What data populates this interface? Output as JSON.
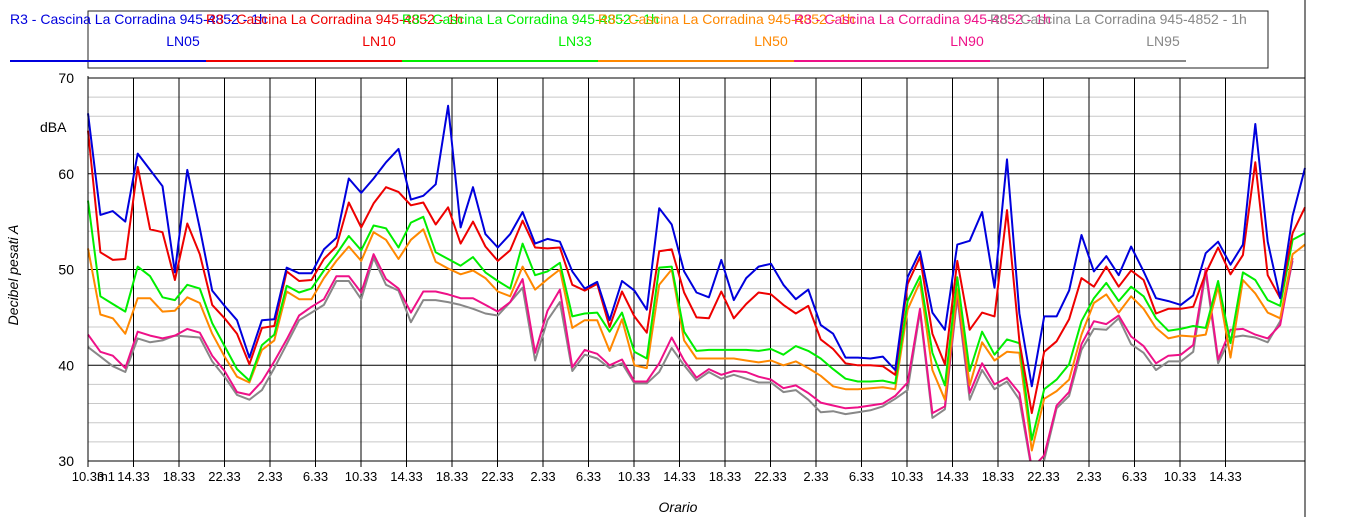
{
  "chart_data": {
    "type": "line",
    "xlabel": "Orario",
    "ylabel": "Decibel pesati A",
    "unit": "dBA",
    "ylim": [
      30,
      70
    ],
    "yticks": [
      30,
      40,
      50,
      60,
      70
    ],
    "xticks": [
      "10.33",
      "14.33",
      "18.33",
      "22.33",
      "2.33",
      "6.33",
      "10.33",
      "14.33",
      "18.33",
      "22.33",
      "2.33",
      "6.33",
      "10.33",
      "14.33",
      "18.33",
      "22.33",
      "2.33",
      "6.33",
      "10.33",
      "14.33",
      "18.33",
      "22.33",
      "2.33",
      "6.33",
      "10.33",
      "14.33"
    ],
    "first_tick_extra": "m1",
    "grid": true,
    "legend_position": "top",
    "series": [
      {
        "name": "R3 - Cascina La Corradina 945-4852 - 1h",
        "metric": "LN05",
        "color": "#0000dd",
        "values": [
          66.3,
          55.7,
          56.1,
          55.0,
          62.1,
          60.4,
          58.7,
          49.7,
          60.4,
          54.3,
          47.8,
          46.2,
          44.7,
          40.8,
          44.7,
          44.8,
          50.2,
          49.6,
          49.6,
          52.1,
          53.3,
          59.5,
          58.0,
          59.5,
          61.2,
          62.6,
          57.3,
          57.7,
          58.9,
          67.1,
          54.4,
          58.6,
          53.7,
          52.3,
          53.7,
          56.0,
          52.7,
          53.2,
          52.9,
          49.8,
          48.0,
          48.7,
          44.7,
          48.8,
          47.8,
          45.8,
          56.4,
          54.7,
          49.8,
          47.6,
          47.1,
          51.0,
          46.8,
          49.1,
          50.3,
          50.6,
          48.4,
          46.9,
          47.9,
          44.2,
          43.3,
          40.8,
          40.8,
          40.7,
          40.9,
          39.5,
          49.2,
          51.9,
          45.5,
          43.7,
          52.6,
          53.0,
          56.0,
          48.1,
          61.5,
          45.4,
          37.8,
          45.1,
          45.1,
          47.8,
          53.6,
          49.8,
          51.4,
          49.4,
          52.4,
          49.8,
          47.0,
          46.7,
          46.3,
          47.3,
          51.7,
          52.9,
          50.5,
          52.6,
          65.2,
          52.9,
          47.0,
          55.6,
          60.6
        ]
      },
      {
        "name": "R3 - Cascina La Corradina 945-4852 - 1h",
        "metric": "LN10",
        "color": "#ee0000",
        "values": [
          64.5,
          51.8,
          51.0,
          51.1,
          60.7,
          54.2,
          53.9,
          48.9,
          54.8,
          51.6,
          46.3,
          44.9,
          43.3,
          40.1,
          43.9,
          44.1,
          49.8,
          48.8,
          48.9,
          51.1,
          52.4,
          57.0,
          54.4,
          56.9,
          58.6,
          58.1,
          56.7,
          57.0,
          54.7,
          56.5,
          52.7,
          55.0,
          52.4,
          50.9,
          52.0,
          55.1,
          52.3,
          52.2,
          52.3,
          48.4,
          47.8,
          48.5,
          44.0,
          47.7,
          45.1,
          43.4,
          51.9,
          52.1,
          47.6,
          45.0,
          44.9,
          47.7,
          44.9,
          46.4,
          47.6,
          47.4,
          46.3,
          45.4,
          46.2,
          42.7,
          41.7,
          40.2,
          40.0,
          40.0,
          39.9,
          39.0,
          48.5,
          51.3,
          43.3,
          40.1,
          50.9,
          43.7,
          45.5,
          45.1,
          56.2,
          42.5,
          35.0,
          41.4,
          42.5,
          44.8,
          49.1,
          48.2,
          50.3,
          48.2,
          49.9,
          48.9,
          45.4,
          45.9,
          45.9,
          46.1,
          49.6,
          52.3,
          49.5,
          51.5,
          61.2,
          49.4,
          47.0,
          53.8,
          56.5
        ]
      },
      {
        "name": "R3 - Cascina La Corradina 945-4852 - 1h",
        "metric": "LN33",
        "color": "#00ee00",
        "values": [
          57.2,
          47.2,
          46.4,
          45.6,
          50.3,
          49.3,
          47.1,
          46.8,
          48.4,
          48.0,
          44.4,
          42.0,
          39.6,
          38.4,
          42.1,
          43.2,
          48.3,
          47.6,
          48.0,
          49.9,
          51.6,
          53.5,
          52.0,
          54.6,
          54.3,
          52.3,
          54.9,
          55.5,
          51.8,
          51.1,
          50.4,
          51.3,
          49.7,
          48.8,
          48.0,
          52.7,
          49.4,
          49.8,
          50.7,
          45.1,
          45.4,
          45.5,
          43.5,
          45.5,
          41.4,
          40.7,
          50.2,
          50.3,
          43.5,
          41.5,
          41.6,
          41.6,
          41.6,
          41.6,
          41.5,
          41.7,
          41.1,
          42.0,
          41.5,
          40.7,
          39.6,
          38.6,
          38.3,
          38.3,
          38.4,
          38.1,
          46.7,
          49.3,
          41.3,
          37.9,
          49.2,
          39.4,
          43.5,
          41.1,
          42.7,
          42.3,
          32.2,
          37.5,
          38.5,
          40.1,
          44.6,
          47.0,
          48.6,
          46.7,
          48.2,
          47.2,
          44.9,
          43.6,
          43.8,
          44.1,
          43.9,
          48.8,
          42.3,
          49.7,
          48.9,
          46.8,
          46.2,
          53.1,
          53.8
        ]
      },
      {
        "name": "R3 - Cascina La Corradina 945-4852 - 1h",
        "metric": "LN50",
        "color": "#ff8800",
        "values": [
          52.2,
          45.3,
          44.9,
          43.3,
          47.0,
          47.0,
          45.6,
          45.7,
          47.1,
          46.5,
          43.3,
          40.9,
          38.8,
          38.2,
          41.6,
          42.6,
          47.7,
          46.9,
          46.9,
          49.1,
          50.9,
          52.4,
          50.9,
          53.9,
          53.1,
          51.1,
          53.1,
          54.2,
          50.8,
          50.1,
          49.5,
          49.9,
          49.1,
          47.7,
          47.2,
          50.3,
          47.9,
          49.0,
          50.0,
          43.9,
          44.7,
          44.7,
          41.5,
          44.8,
          40.0,
          39.7,
          48.4,
          50.0,
          42.6,
          40.7,
          40.7,
          40.7,
          40.7,
          40.5,
          40.3,
          40.5,
          40.0,
          40.4,
          39.7,
          38.9,
          37.8,
          37.5,
          37.5,
          37.6,
          37.7,
          37.5,
          45.8,
          48.7,
          39.5,
          36.4,
          48.0,
          37.9,
          42.4,
          40.5,
          41.4,
          41.3,
          31.1,
          36.5,
          37.3,
          38.5,
          43.2,
          46.5,
          47.4,
          45.5,
          47.2,
          45.9,
          43.9,
          42.8,
          43.1,
          43.0,
          43.2,
          48.2,
          40.8,
          48.9,
          47.5,
          45.5,
          44.9,
          51.6,
          52.6
        ]
      },
      {
        "name": "R3 - Cascina La Corradina 945-4852 - 1h",
        "metric": "LN90",
        "color": "#ee1188",
        "values": [
          43.2,
          41.4,
          41.0,
          39.7,
          43.5,
          43.1,
          42.8,
          43.1,
          43.8,
          43.4,
          41.0,
          39.4,
          37.2,
          36.9,
          38.3,
          40.4,
          42.7,
          45.2,
          46.1,
          46.9,
          49.3,
          49.3,
          47.6,
          51.6,
          49.0,
          48.0,
          45.5,
          47.7,
          47.7,
          47.4,
          47.0,
          47.0,
          46.3,
          45.6,
          46.6,
          49.0,
          41.3,
          45.7,
          47.9,
          39.8,
          41.6,
          41.2,
          40.0,
          40.6,
          38.3,
          38.3,
          40.2,
          42.9,
          40.5,
          38.7,
          39.6,
          39.0,
          39.4,
          39.3,
          38.8,
          38.5,
          37.6,
          37.9,
          37.1,
          36.1,
          35.8,
          35.5,
          35.6,
          35.8,
          36.0,
          36.8,
          38.2,
          45.9,
          35.0,
          35.7,
          47.5,
          37.1,
          40.2,
          38.0,
          38.7,
          37.1,
          29.2,
          30.6,
          35.8,
          37.2,
          42.2,
          44.6,
          44.3,
          45.2,
          43.0,
          42.0,
          40.2,
          41.0,
          41.1,
          42.1,
          50.1,
          40.6,
          43.7,
          43.8,
          43.2,
          42.8,
          44.2,
          51.2
        ]
      },
      {
        "name": "R3 - Cascina La Corradina 945-4852 - 1h",
        "metric": "LN95",
        "color": "#888888",
        "values": [
          41.9,
          40.9,
          39.9,
          39.3,
          42.8,
          42.4,
          42.6,
          43.1,
          43.0,
          42.9,
          40.4,
          38.8,
          36.9,
          36.4,
          37.4,
          39.7,
          42.2,
          44.7,
          45.5,
          46.3,
          48.8,
          48.8,
          46.9,
          51.2,
          48.4,
          47.8,
          44.5,
          46.8,
          46.8,
          46.6,
          46.3,
          45.9,
          45.4,
          45.2,
          46.6,
          48.1,
          40.5,
          44.7,
          46.6,
          39.4,
          41.1,
          40.7,
          39.7,
          40.2,
          38.1,
          38.1,
          39.3,
          41.8,
          40.0,
          38.4,
          39.3,
          38.6,
          39.0,
          38.6,
          38.2,
          38.2,
          37.2,
          37.4,
          36.4,
          35.1,
          35.2,
          34.9,
          35.1,
          35.3,
          35.7,
          36.5,
          37.4,
          45.6,
          34.5,
          35.4,
          47.1,
          36.4,
          39.5,
          37.5,
          38.3,
          36.4,
          28.6,
          30.1,
          35.5,
          36.8,
          41.6,
          43.8,
          43.7,
          44.9,
          42.2,
          41.3,
          39.5,
          40.4,
          40.4,
          41.4,
          49.7,
          40.2,
          42.9,
          43.1,
          42.9,
          42.4,
          44.6,
          50.9
        ]
      }
    ]
  }
}
